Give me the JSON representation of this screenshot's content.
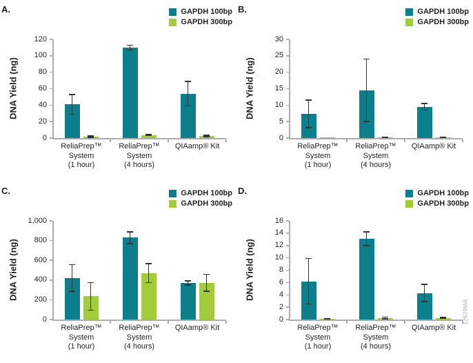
{
  "figure": {
    "watermark": "12629MA",
    "colors": {
      "series1": "#0d7e8c",
      "series2": "#a2cc3a",
      "axis": "#aaacae",
      "error_bar": "#323236",
      "text": "#231f20",
      "watermark_text": "#a7a9ac"
    }
  },
  "chart_data": [
    {
      "type": "bar",
      "panel_label": "A.",
      "ylabel": "DNA Yield (ng)",
      "xlabel": "",
      "ylim": [
        0,
        120
      ],
      "ytick_step": 20,
      "ytick_labels": [
        "0",
        "20",
        "40",
        "60",
        "80",
        "100",
        "120"
      ],
      "grid": false,
      "legend_position": "top-right",
      "legend": [
        "GAPDH 100bp",
        "GAPDH 300bp"
      ],
      "categories": [
        [
          "ReliaPrep™",
          "System",
          "(1 hour)"
        ],
        [
          "ReliaPrep™",
          "System",
          "(4 hours)"
        ],
        [
          "QIAamp® Kit"
        ]
      ],
      "series": [
        {
          "name": "GAPDH 100bp",
          "color": "#0d7e8c",
          "values": [
            41,
            110,
            54
          ],
          "errors": [
            12,
            3,
            15
          ]
        },
        {
          "name": "GAPDH 300bp",
          "color": "#a2cc3a",
          "values": [
            1.5,
            3.5,
            2.5
          ],
          "errors": [
            0.8,
            0.5,
            0.7
          ]
        }
      ]
    },
    {
      "type": "bar",
      "panel_label": "B.",
      "ylabel": "DNA Yield (ng)",
      "xlabel": "",
      "ylim": [
        0,
        30
      ],
      "ytick_step": 5,
      "ytick_labels": [
        "0",
        "5",
        "10",
        "15",
        "20",
        "25",
        "30"
      ],
      "grid": false,
      "legend_position": "top-right",
      "legend": [
        "GAPDH 100bp",
        "GAPDH 300bp"
      ],
      "categories": [
        [
          "ReliaPrep™",
          "System",
          "(1 hour)"
        ],
        [
          "ReliaPrep™",
          "System",
          "(4 hours)"
        ],
        [
          "QIAamp® Kit"
        ]
      ],
      "series": [
        {
          "name": "GAPDH 100bp",
          "color": "#0d7e8c",
          "values": [
            7.3,
            14.5,
            9.5
          ],
          "errors": [
            4.2,
            9.5,
            1.0
          ]
        },
        {
          "name": "GAPDH 300bp",
          "color": "#a2cc3a",
          "values": [
            0.05,
            0.2,
            0.2
          ],
          "errors": [
            0,
            0.05,
            0.05
          ]
        }
      ]
    },
    {
      "type": "bar",
      "panel_label": "C.",
      "ylabel": "DNA Yield (ng)",
      "xlabel": "",
      "ylim": [
        0,
        1000
      ],
      "ytick_step": 200,
      "ytick_labels": [
        "0",
        "200",
        "400",
        "600",
        "800",
        "1,000"
      ],
      "grid": false,
      "legend_position": "top-right",
      "legend": [
        "GAPDH 100bp",
        "GAPDH 300bp"
      ],
      "categories": [
        [
          "ReliaPrep™",
          "System",
          "(1 hour)"
        ],
        [
          "ReliaPrep™",
          "System",
          "(4 hours)"
        ],
        [
          "QIAamp® Kit"
        ]
      ],
      "series": [
        {
          "name": "GAPDH 100bp",
          "color": "#0d7e8c",
          "values": [
            420,
            830,
            370
          ],
          "errors": [
            135,
            60,
            20
          ]
        },
        {
          "name": "GAPDH 300bp",
          "color": "#a2cc3a",
          "values": [
            235,
            470,
            372
          ],
          "errors": [
            140,
            97,
            85
          ]
        }
      ]
    },
    {
      "type": "bar",
      "panel_label": "D.",
      "ylabel": "DNA Yield (ng)",
      "xlabel": "",
      "ylim": [
        0,
        16
      ],
      "ytick_step": 2,
      "ytick_labels": [
        "0",
        "2",
        "4",
        "6",
        "8",
        "10",
        "12",
        "14",
        "16"
      ],
      "grid": false,
      "legend_position": "top-right",
      "legend": [
        "GAPDH 100bp",
        "GAPDH 300bp"
      ],
      "categories": [
        [
          "ReliaPrep™",
          "System",
          "(1 hour)"
        ],
        [
          "ReliaPrep™",
          "System",
          "(4 hours)"
        ],
        [
          "QIAamp® Kit"
        ]
      ],
      "series": [
        {
          "name": "GAPDH 100bp",
          "color": "#0d7e8c",
          "values": [
            6.2,
            13.1,
            4.3
          ],
          "errors": [
            3.7,
            1.1,
            1.4
          ]
        },
        {
          "name": "GAPDH 300bp",
          "color": "#a2cc3a",
          "values": [
            0.1,
            0.25,
            0.25
          ],
          "errors": [
            0.05,
            0.15,
            0.1
          ]
        }
      ]
    }
  ]
}
